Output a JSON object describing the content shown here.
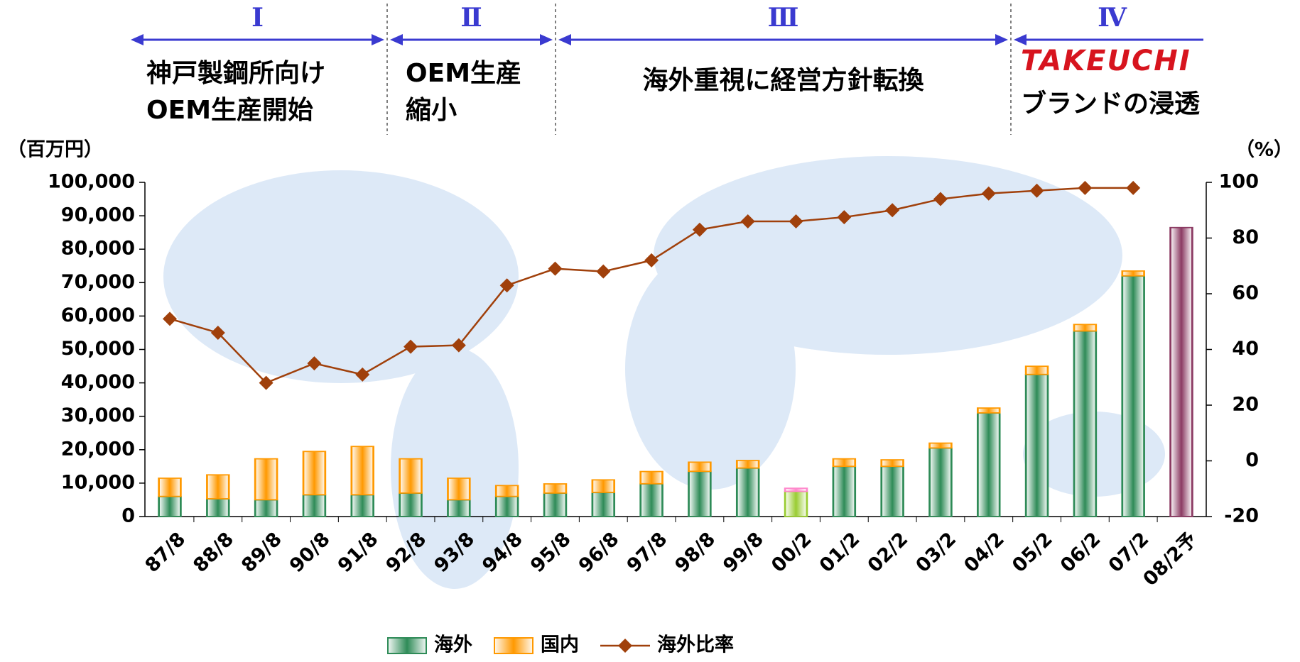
{
  "chart_data": {
    "type": "bar",
    "y_label": "（百万円）",
    "y2_label": "（%）",
    "phases": [
      {
        "numeral": "Ⅰ",
        "lines": [
          "神戸製鋼所向け",
          "OEM生産開始"
        ]
      },
      {
        "numeral": "Ⅱ",
        "lines": [
          "OEM生産",
          "縮小"
        ]
      },
      {
        "numeral": "Ⅲ",
        "lines": [
          "海外重視に経営方針転換"
        ]
      },
      {
        "numeral": "Ⅳ",
        "lines": [
          "TAKEUCHI",
          "ブランドの浸透"
        ]
      }
    ],
    "categories": [
      "87/8",
      "88/8",
      "89/8",
      "90/8",
      "91/8",
      "92/8",
      "93/8",
      "94/8",
      "95/8",
      "96/8",
      "97/8",
      "98/8",
      "99/8",
      "00/2",
      "01/2",
      "02/2",
      "03/2",
      "04/2",
      "05/2",
      "06/2",
      "07/2",
      "08/2予"
    ],
    "ylim": [
      0,
      100000
    ],
    "yticks": [
      0,
      {
        "value": 10000,
        "label": "10,000"
      },
      {
        "value": 20000,
        "label": "20,000"
      },
      {
        "value": 30000,
        "label": "30,000"
      },
      {
        "value": 40000,
        "label": "40,000"
      },
      {
        "value": 50000,
        "label": "50,000"
      },
      {
        "value": 60000,
        "label": "60,000"
      },
      {
        "value": 70000,
        "label": "70,000"
      },
      {
        "value": 80000,
        "label": "80,000"
      },
      {
        "value": 90000,
        "label": "90,000"
      },
      {
        "value": 100000,
        "label": "100,000"
      }
    ],
    "y2lim": [
      -20,
      100
    ],
    "y2ticks": [
      -20,
      0,
      20,
      40,
      60,
      80,
      100
    ],
    "series": [
      {
        "name": "海外",
        "type": "bar",
        "color": "#2e8b57",
        "point_colors": [
          null,
          null,
          null,
          null,
          null,
          null,
          null,
          null,
          null,
          null,
          null,
          null,
          null,
          "#9acd32",
          null,
          null,
          null,
          null,
          null,
          null,
          null,
          "#8b3a62"
        ],
        "values": [
          6000,
          5300,
          5000,
          6500,
          6500,
          7000,
          5000,
          6000,
          7000,
          7200,
          9800,
          13500,
          14500,
          7500,
          15000,
          15000,
          20500,
          31000,
          42500,
          55500,
          72000,
          86500
        ]
      },
      {
        "name": "国内",
        "type": "bar",
        "color": "#ff9900",
        "point_colors": [
          null,
          null,
          null,
          null,
          null,
          null,
          null,
          null,
          null,
          null,
          null,
          null,
          null,
          "#ff88cc",
          null,
          null,
          null,
          null,
          null,
          null,
          null,
          null
        ],
        "values": [
          5500,
          7200,
          12300,
          13000,
          14500,
          10300,
          6500,
          3300,
          2800,
          3800,
          3700,
          2800,
          2300,
          1000,
          2300,
          2000,
          1500,
          1500,
          2500,
          2000,
          1500,
          null
        ]
      },
      {
        "name": "海外比率",
        "type": "line",
        "axis": "y2",
        "color": "#a0400b",
        "values": [
          51,
          46,
          28,
          35,
          31,
          41,
          41.5,
          63,
          69,
          68,
          72,
          83,
          86,
          86,
          87.5,
          90,
          94,
          96,
          97,
          98,
          98,
          null
        ]
      }
    ]
  }
}
